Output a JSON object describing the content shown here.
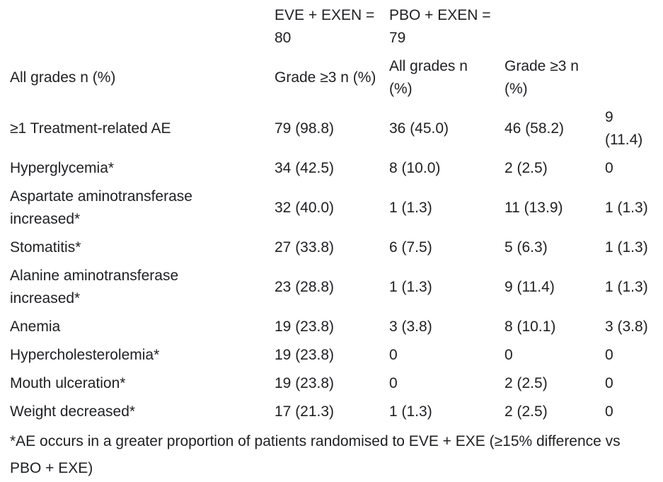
{
  "table": {
    "columns": {
      "group": [
        "",
        "EVE + EXEN =\n80",
        "PBO + EXEN =\n79",
        "",
        ""
      ],
      "sub": [
        "All grades n (%)",
        "Grade ≥3 n (%)",
        "All grades n\n(%)",
        "Grade ≥3 n\n(%)",
        ""
      ]
    },
    "rows": [
      {
        "label": "≥1 Treatment-related AE",
        "values": [
          "79 (98.8)",
          "36 (45.0)",
          "46 (58.2)",
          "9\n(11.4)"
        ]
      },
      {
        "label": "Hyperglycemia*",
        "values": [
          "34 (42.5)",
          "8 (10.0)",
          "2 (2.5)",
          "0"
        ]
      },
      {
        "label": "Aspartate aminotransferase\nincreased*",
        "values": [
          "32 (40.0)",
          "1 (1.3)",
          "11 (13.9)",
          "1 (1.3)"
        ]
      },
      {
        "label": "Stomatitis*",
        "values": [
          "27 (33.8)",
          "6 (7.5)",
          "5 (6.3)",
          "1 (1.3)"
        ]
      },
      {
        "label": "Alanine aminotransferase\nincreased*",
        "values": [
          "23 (28.8)",
          "1 (1.3)",
          "9 (11.4)",
          "1 (1.3)"
        ]
      },
      {
        "label": "Anemia",
        "values": [
          "19 (23.8)",
          "3 (3.8)",
          "8 (10.1)",
          "3 (3.8)"
        ]
      },
      {
        "label": "Hypercholesterolemia*",
        "values": [
          "19 (23.8)",
          "0",
          "0",
          "0"
        ]
      },
      {
        "label": "Mouth ulceration*",
        "values": [
          "19 (23.8)",
          "0",
          "2 (2.5)",
          "0"
        ]
      },
      {
        "label": "Weight decreased*",
        "values": [
          "17 (21.3)",
          "1 (1.3)",
          "2 (2.5)",
          "0"
        ]
      }
    ],
    "footnote": "*AE occurs in a greater proportion of patients randomised to EVE + EXE (≥15% difference vs PBO + EXE)",
    "text_color": "#202124",
    "background_color": "#ffffff"
  }
}
